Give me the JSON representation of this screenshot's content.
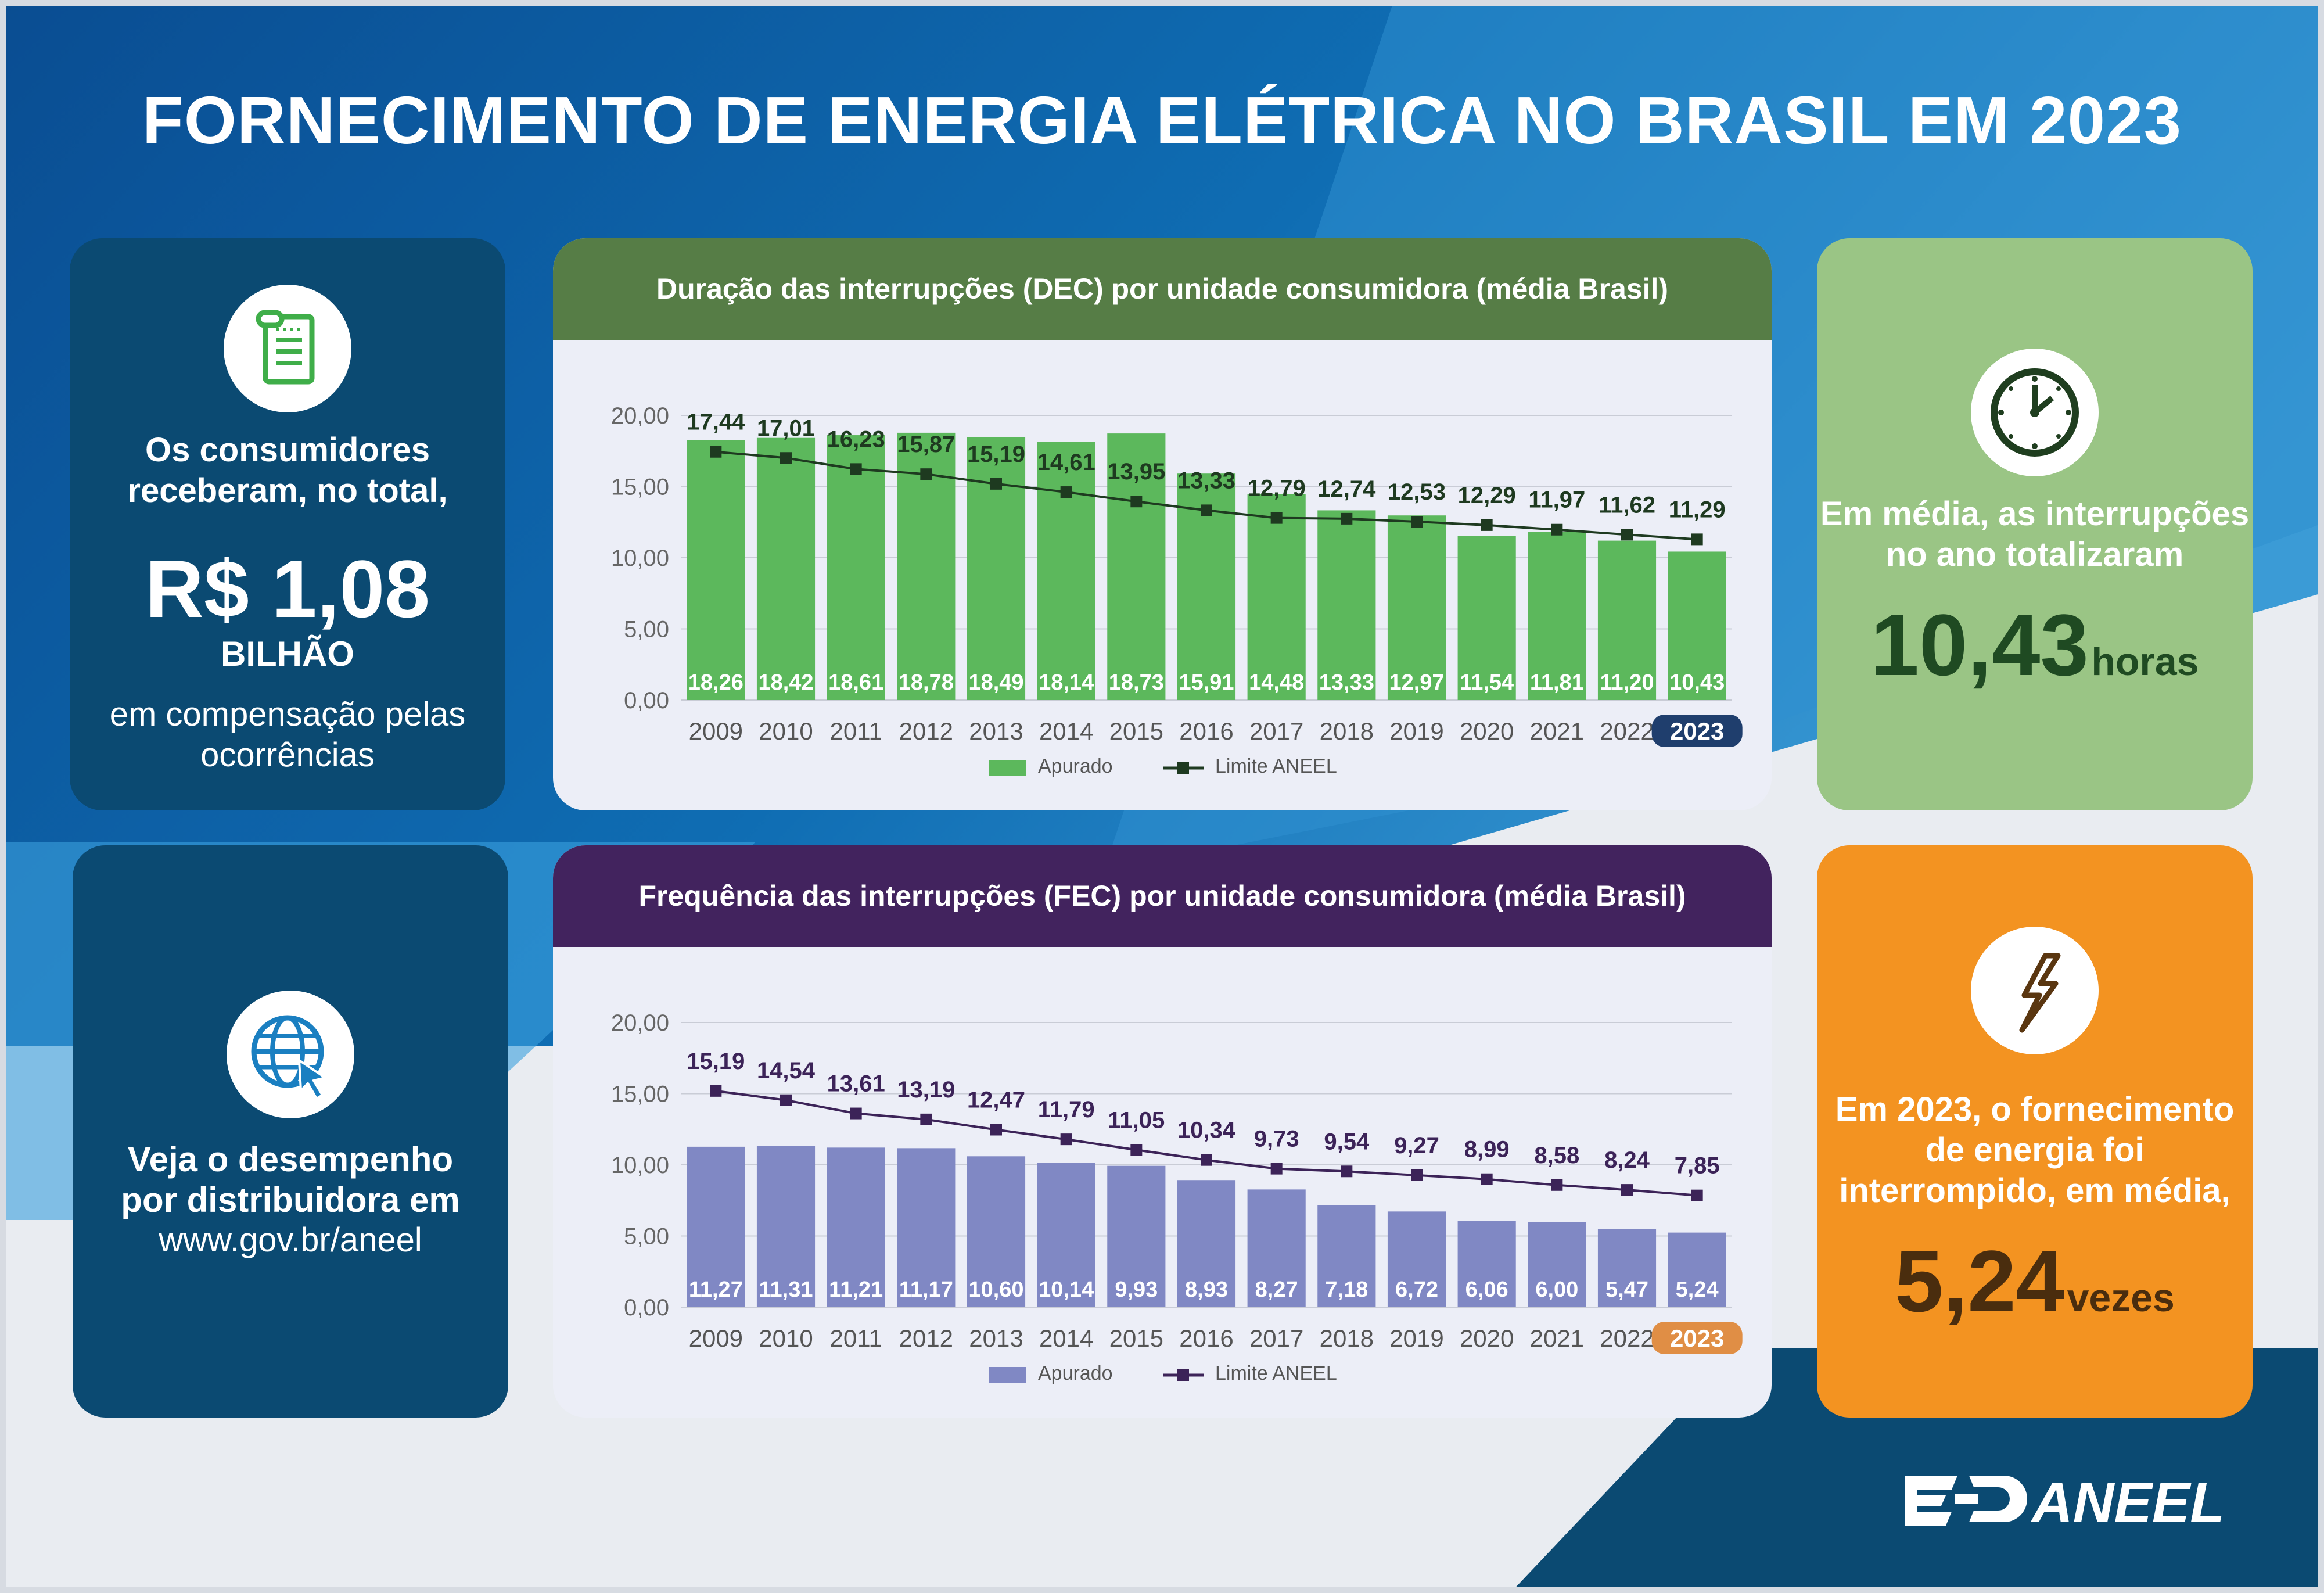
{
  "title": "FORNECIMENTO DE ENERGIA ELÉTRICA NO BRASIL EM 2023",
  "left_top": {
    "icon": "receipt-icon",
    "line1": "Os consumidores",
    "line2": "receberam, no total,",
    "amount": "R$ 1,08",
    "unit": "BILHÃO",
    "line3": "em compensação pelas",
    "line4": "ocorrências"
  },
  "left_bottom": {
    "icon": "globe-cursor-icon",
    "line1": "Veja o desempenho",
    "line2": "por distribuidora em",
    "link": "www.gov.br/aneel"
  },
  "right_top": {
    "icon": "clock-icon",
    "line1": "Em média, as interrupções",
    "line2": "no ano totalizaram",
    "value": "10,43",
    "unit": "horas"
  },
  "right_bottom": {
    "icon": "lightning-icon",
    "line1": "Em 2023, o fornecimento",
    "line2": "de energia foi",
    "line3": "interrompido, em média,",
    "value": "5,24",
    "unit": "vezes"
  },
  "logo": {
    "text": "ANEEL"
  },
  "colors": {
    "dec_bar": "#5cb85c",
    "dec_line": "#1e3a20",
    "dec_header": "#567d46",
    "fec_bar": "#8088c4",
    "fec_line": "#3c2358",
    "fec_header": "#42235e",
    "dark_blue": "#0b4a72",
    "dec_highlight": "#1f3e6d",
    "fec_highlight": "#e08e45"
  },
  "chart_data": [
    {
      "type": "bar",
      "title": "Duração das interrupções (DEC) por unidade consumidora (média Brasil)",
      "categories": [
        "2009",
        "2010",
        "2011",
        "2012",
        "2013",
        "2014",
        "2015",
        "2016",
        "2017",
        "2018",
        "2019",
        "2020",
        "2021",
        "2022",
        "2023"
      ],
      "series": [
        {
          "name": "Apurado",
          "type": "bar",
          "values": [
            18.26,
            18.42,
            18.61,
            18.78,
            18.49,
            18.14,
            18.73,
            15.91,
            14.48,
            13.33,
            12.97,
            11.54,
            11.81,
            11.2,
            10.43
          ],
          "labels": [
            "18,26",
            "18,42",
            "18,61",
            "18,78",
            "18,49",
            "18,14",
            "18,73",
            "15,91",
            "14,48",
            "13,33",
            "12,97",
            "11,54",
            "11,81",
            "11,20",
            "10,43"
          ]
        },
        {
          "name": "Limite ANEEL",
          "type": "line",
          "values": [
            17.44,
            17.01,
            16.23,
            15.87,
            15.19,
            14.61,
            13.95,
            13.33,
            12.79,
            12.74,
            12.53,
            12.29,
            11.97,
            11.62,
            11.29
          ],
          "labels": [
            "17,44",
            "17,01",
            "16,23",
            "15,87",
            "15,19",
            "14,61",
            "13,95",
            "13,33",
            "12,79",
            "12,74",
            "12,53",
            "12,29",
            "11,97",
            "11,62",
            "11,29"
          ]
        }
      ],
      "yticks": [
        "20,00",
        "15,00",
        "10,00",
        "5,00",
        "0,00"
      ],
      "ylim": [
        0,
        20
      ],
      "highlight_category": "2023",
      "legend": "bottom"
    },
    {
      "type": "bar",
      "title": "Frequência das interrupções (FEC) por unidade consumidora (média Brasil)",
      "categories": [
        "2009",
        "2010",
        "2011",
        "2012",
        "2013",
        "2014",
        "2015",
        "2016",
        "2017",
        "2018",
        "2019",
        "2020",
        "2021",
        "2022",
        "2023"
      ],
      "series": [
        {
          "name": "Apurado",
          "type": "bar",
          "values": [
            11.27,
            11.31,
            11.21,
            11.17,
            10.6,
            10.14,
            9.93,
            8.93,
            8.27,
            7.18,
            6.72,
            6.06,
            6.0,
            5.47,
            5.24
          ],
          "labels": [
            "11,27",
            "11,31",
            "11,21",
            "11,17",
            "10,60",
            "10,14",
            "9,93",
            "8,93",
            "8,27",
            "7,18",
            "6,72",
            "6,06",
            "6,00",
            "5,47",
            "5,24"
          ]
        },
        {
          "name": "Limite ANEEL",
          "type": "line",
          "values": [
            15.19,
            14.54,
            13.61,
            13.19,
            12.47,
            11.79,
            11.05,
            10.34,
            9.73,
            9.54,
            9.27,
            8.99,
            8.58,
            8.24,
            7.85
          ],
          "labels": [
            "15,19",
            "14,54",
            "13,61",
            "13,19",
            "12,47",
            "11,79",
            "11,05",
            "10,34",
            "9,73",
            "9,54",
            "9,27",
            "8,99",
            "8,58",
            "8,24",
            "7,85"
          ]
        }
      ],
      "yticks": [
        "20,00",
        "15,00",
        "10,00",
        "5,00",
        "0,00"
      ],
      "ylim": [
        0,
        20
      ],
      "highlight_category": "2023",
      "legend": "bottom"
    }
  ]
}
